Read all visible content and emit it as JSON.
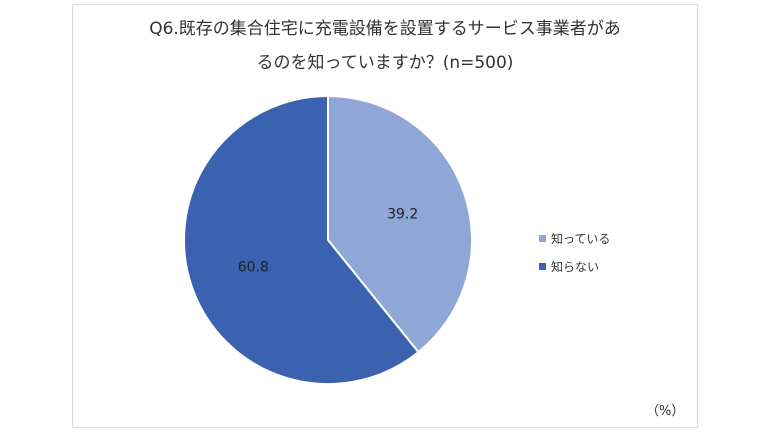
{
  "chart_data": {
    "type": "pie",
    "title_line1": "Q6.既存の集合住宅に充電設備を設置するサービス事業者があ",
    "title_line2": "るのを知っていますか？(n=500)",
    "slices": [
      {
        "label": "知っている",
        "value": 39.2,
        "value_label": "39.2",
        "color": "#8fa6d6"
      },
      {
        "label": "知らない",
        "value": 60.8,
        "value_label": "60.8",
        "color": "#3a62b0"
      }
    ],
    "legend_position": "right",
    "unit_label": "（%）"
  }
}
